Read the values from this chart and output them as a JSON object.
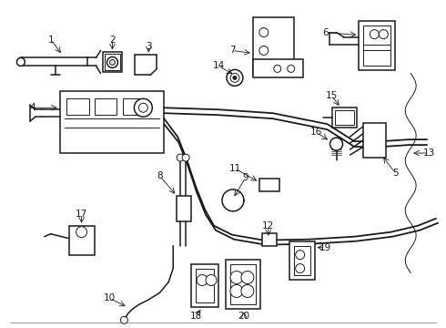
{
  "background_color": "#ffffff",
  "line_color": "#1a1a1a",
  "fig_width": 4.9,
  "fig_height": 3.6,
  "dpi": 100,
  "label_fontsize": 7.5,
  "lw_main": 1.1,
  "lw_thin": 0.7,
  "lw_cable": 1.3
}
